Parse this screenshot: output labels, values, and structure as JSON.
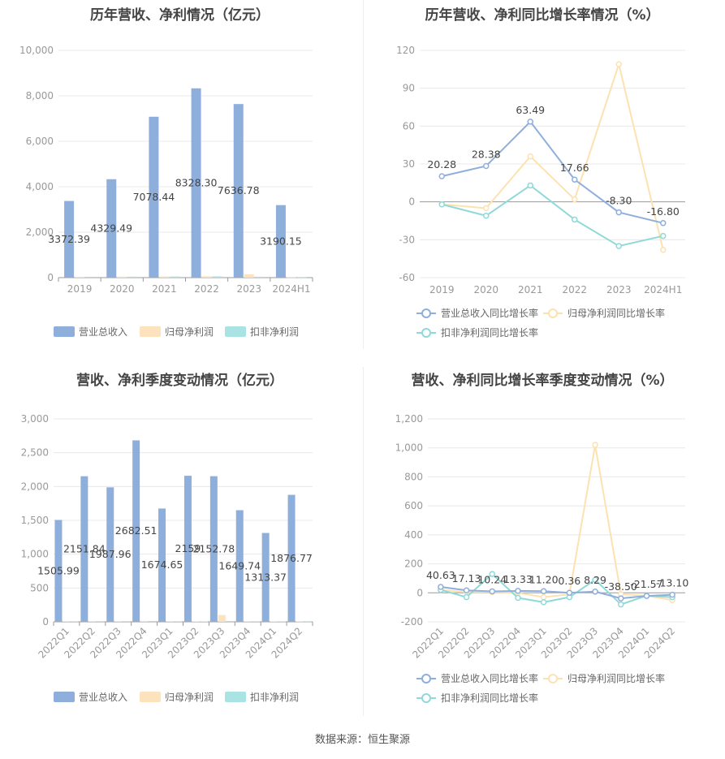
{
  "colors": {
    "revenue": "#8eafdc",
    "net_profit": "#fce2bd",
    "deducted_profit": "#a9e3e3",
    "rev_line": "#8eafdc",
    "np_line": "#fde2b1",
    "dp_line": "#8fd9d9",
    "axis_text": "#999999",
    "title": "#444444",
    "grid": "#e8e8e8",
    "label": "#444444"
  },
  "footer": {
    "source": "数据来源：恒生聚源"
  },
  "chart_data": [
    {
      "type": "bar",
      "title": "历年营收、净利情况（亿元）",
      "categories": [
        "2019",
        "2020",
        "2021",
        "2022",
        "2023",
        "2024H1"
      ],
      "ylim": [
        0,
        10000
      ],
      "yticks": [
        0,
        2000,
        4000,
        6000,
        8000,
        10000
      ],
      "ytick_labels": [
        "0",
        "2,000",
        "4,000",
        "6,000",
        "8,000",
        "10,000"
      ],
      "grid": true,
      "legend_position": "bottom",
      "series": [
        {
          "name": "营业总收入",
          "values": [
            3372.39,
            4329.49,
            7078.44,
            8328.3,
            7636.78,
            3190.15
          ],
          "labels": [
            "3372.39",
            "4329.49",
            "7078.44",
            "8328.30",
            "7636.78",
            "3190.15"
          ]
        },
        {
          "name": "归母净利润",
          "values": [
            40,
            45,
            55,
            60,
            150,
            12
          ]
        },
        {
          "name": "扣非净利润",
          "values": [
            38,
            42,
            50,
            55,
            40,
            10
          ]
        }
      ]
    },
    {
      "type": "line",
      "title": "历年营收、净利同比增长率情况（%）",
      "categories": [
        "2019",
        "2020",
        "2021",
        "2022",
        "2023",
        "2024H1"
      ],
      "ylim": [
        -60,
        120
      ],
      "yticks": [
        -60,
        -30,
        0,
        30,
        60,
        90,
        120
      ],
      "ytick_labels": [
        "-60",
        "-30",
        "0",
        "30",
        "60",
        "90",
        "120"
      ],
      "grid": true,
      "legend_position": "bottom",
      "series": [
        {
          "name": "营业总收入同比增长率",
          "values": [
            20.28,
            28.38,
            63.49,
            17.66,
            -8.3,
            -16.8
          ],
          "labels": [
            "20.28",
            "28.38",
            "63.49",
            "17.66",
            "-8.30",
            "-16.80"
          ]
        },
        {
          "name": "归母净利润同比增长率",
          "values": [
            -2,
            -5,
            36,
            2,
            109,
            -38
          ]
        },
        {
          "name": "扣非净利润同比增长率",
          "values": [
            -2,
            -11,
            13,
            -14,
            -35,
            -27
          ]
        }
      ]
    },
    {
      "type": "bar",
      "title": "营收、净利季度变动情况（亿元）",
      "categories": [
        "2022Q1",
        "2022Q2",
        "2022Q3",
        "2022Q4",
        "2023Q1",
        "2023Q2",
        "2023Q3",
        "2023Q4",
        "2024Q1",
        "2024Q2"
      ],
      "ylim": [
        0,
        3000
      ],
      "yticks": [
        0,
        500,
        1000,
        1500,
        2000,
        2500,
        3000
      ],
      "ytick_labels": [
        "0",
        "500",
        "1,000",
        "1,500",
        "2,000",
        "2,500",
        "3,000"
      ],
      "grid": true,
      "legend_position": "bottom",
      "series": [
        {
          "name": "营业总收入",
          "values": [
            1505.99,
            2151.84,
            1987.96,
            2682.51,
            1674.65,
            2159.0,
            2152.78,
            1649.74,
            1313.37,
            1876.77
          ],
          "labels": [
            "1505.99",
            "2151.84",
            "1987.96",
            "2682.51",
            "1674.65",
            "2159",
            "2152.78",
            "1649.74",
            "1313.37",
            "1876.77"
          ]
        },
        {
          "name": "归母净利润",
          "values": [
            10,
            12,
            12,
            15,
            10,
            8,
            100,
            10,
            8,
            5
          ]
        },
        {
          "name": "扣非净利润",
          "values": [
            8,
            10,
            10,
            12,
            8,
            6,
            12,
            8,
            6,
            4
          ]
        }
      ]
    },
    {
      "type": "line",
      "title": "营收、净利同比增长率季度变动情况（%）",
      "categories": [
        "2022Q1",
        "2022Q2",
        "2022Q3",
        "2022Q4",
        "2023Q1",
        "2023Q2",
        "2023Q3",
        "2023Q4",
        "2024Q1",
        "2024Q2"
      ],
      "ylim": [
        -200,
        1200
      ],
      "yticks": [
        -200,
        0,
        200,
        400,
        600,
        800,
        1000,
        1200
      ],
      "ytick_labels": [
        "-200",
        "0",
        "200",
        "400",
        "600",
        "800",
        "1,000",
        "1,200"
      ],
      "grid": true,
      "legend_position": "bottom",
      "series": [
        {
          "name": "营业总收入同比增长率",
          "values": [
            40.63,
            17.13,
            10.24,
            13.33,
            11.2,
            0.36,
            8.29,
            -38.5,
            -21.57,
            -13.1
          ],
          "labels": [
            "40.63",
            "17.13",
            "10.24",
            "13.33",
            "11.20",
            "0.36",
            "8.29",
            "-38.50",
            "-21.57",
            "-13.10"
          ]
        },
        {
          "name": "归母净利润同比增长率",
          "values": [
            20,
            5,
            5,
            0,
            -30,
            -10,
            1020,
            -10,
            -20,
            -50
          ]
        },
        {
          "name": "扣非净利润同比增长率",
          "values": [
            20,
            -30,
            130,
            -35,
            -65,
            -30,
            90,
            -80,
            -20,
            -30
          ]
        }
      ]
    }
  ]
}
